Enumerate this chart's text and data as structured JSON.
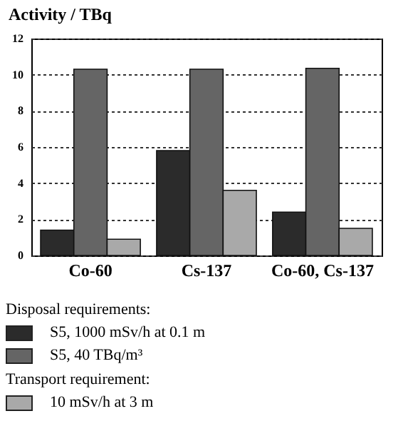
{
  "chart_data": {
    "type": "bar",
    "title": "Activity / TBq",
    "categories": [
      "Co-60",
      "Cs-137",
      "Co-60, Cs-137"
    ],
    "series": [
      {
        "name": "S5, 1000 mSv/h at 0.1 m",
        "color": "#2b2b2b",
        "values": [
          1.4,
          5.8,
          2.4
        ]
      },
      {
        "name": "S5, 40 TBq/m³",
        "color": "#656565",
        "values": [
          10.3,
          10.3,
          10.35
        ]
      },
      {
        "name": "10 mSv/h at 3 m",
        "color": "#a9a9a9",
        "values": [
          0.9,
          3.6,
          1.5
        ]
      }
    ],
    "ylim": [
      0,
      12
    ],
    "yticks": [
      0,
      2,
      4,
      6,
      8,
      10,
      12
    ],
    "grid": "y",
    "legend": "bottom",
    "annotations": [
      "Disposal requirements:",
      "Transport requirement:"
    ]
  }
}
